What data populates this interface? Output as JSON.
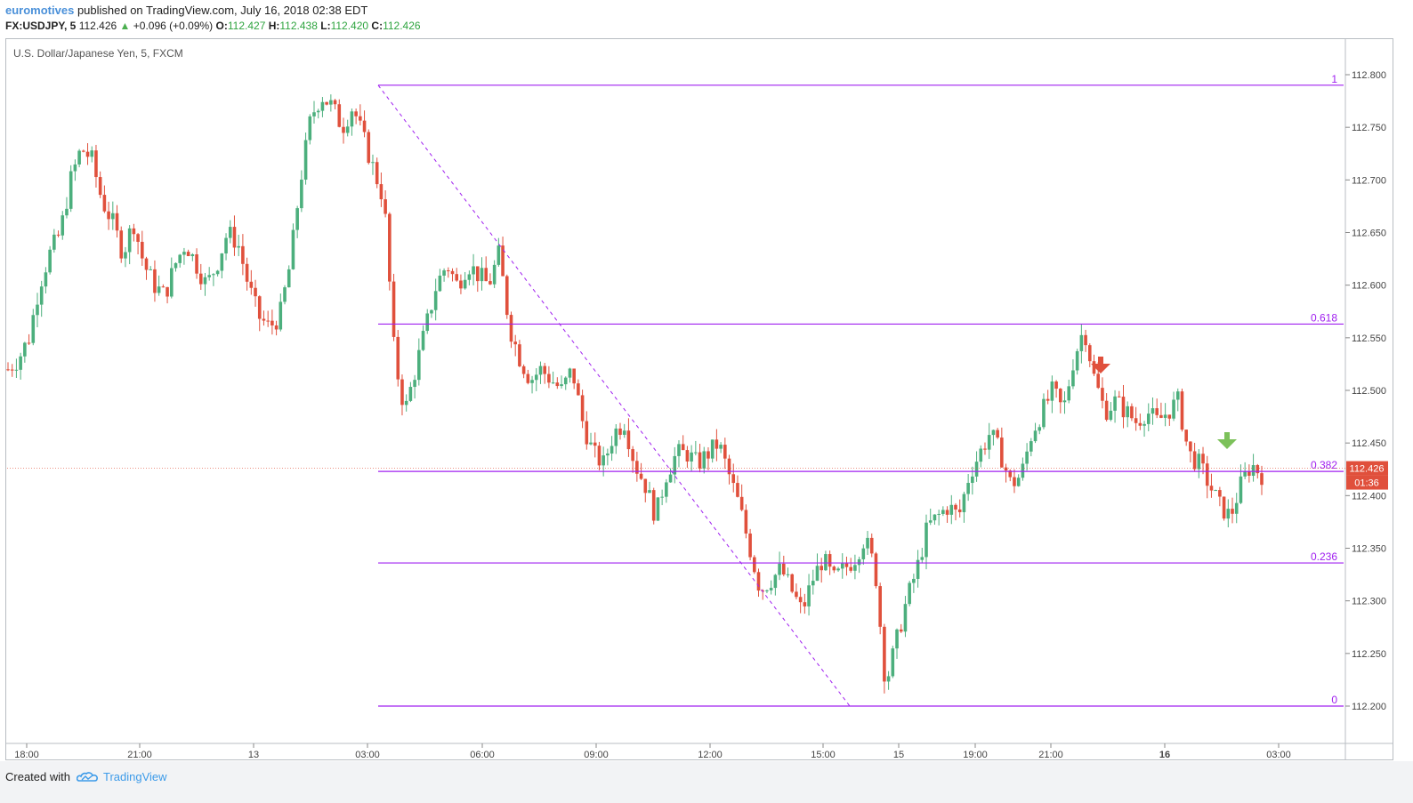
{
  "header": {
    "author": "euromotives",
    "published_text": "published on TradingView.com, July 16, 2018 02:38 EDT",
    "symbol": "FX:USDJPY, 5",
    "last": "112.426",
    "change_arrow": "▲",
    "change": "+0.096 (+0.09%)",
    "o_label": "O:",
    "o_value": "112.427",
    "h_label": "H:",
    "h_value": "112.438",
    "l_label": "L:",
    "l_value": "112.420",
    "c_label": "C:",
    "c_value": "112.426"
  },
  "chart_title": "U.S. Dollar/Japanese Yen, 5, FXCM",
  "footer": {
    "created_with": "Created with",
    "brand": "TradingView",
    "logo_icon": "tradingview-cloud-icon"
  },
  "colors": {
    "up": "#4caf7d",
    "down": "#e0503c",
    "fib": "#a020f0",
    "price_tag": "#e0503c",
    "brand": "#3d9be9"
  },
  "chart_data": {
    "type": "candlestick",
    "title": "U.S. Dollar/Japanese Yen, 5, FXCM",
    "ylim": [
      112.17,
      112.82
    ],
    "y_ticks": [
      "112.800",
      "112.750",
      "112.700",
      "112.650",
      "112.600",
      "112.550",
      "112.500",
      "112.450",
      "112.400",
      "112.350",
      "112.300",
      "112.250",
      "112.200"
    ],
    "x_ticks": [
      "18:00",
      "21:00",
      "13",
      "03:00",
      "06:00",
      "09:00",
      "12:00",
      "15:00",
      "15",
      "19:00",
      "21:00",
      "16",
      "03:00"
    ],
    "current_price": "112.426",
    "countdown": "01:36",
    "fib_levels": [
      {
        "label": "1",
        "price": 112.79
      },
      {
        "label": "0.618",
        "price": 112.563
      },
      {
        "label": "0.382",
        "price": 112.423
      },
      {
        "label": "0.236",
        "price": 112.336
      },
      {
        "label": "0",
        "price": 112.2
      }
    ],
    "fib_trendline": {
      "from_price": 112.79,
      "to_price": 112.2
    },
    "annotations": [
      {
        "type": "arrow-down",
        "color": "#e0503c"
      },
      {
        "type": "arrow-down",
        "color": "#7cc15a"
      }
    ],
    "price_path": [
      112.52,
      112.53,
      112.55,
      112.6,
      112.63,
      112.65,
      112.7,
      112.73,
      112.72,
      112.68,
      112.66,
      112.63,
      112.66,
      112.62,
      112.6,
      112.59,
      112.62,
      112.64,
      112.62,
      112.6,
      112.62,
      112.65,
      112.64,
      112.6,
      112.57,
      112.56,
      112.57,
      112.62,
      112.7,
      112.76,
      112.78,
      112.77,
      112.75,
      112.77,
      112.74,
      112.71,
      112.68,
      112.53,
      112.48,
      112.52,
      112.56,
      112.6,
      112.62,
      112.6,
      112.62,
      112.61,
      112.6,
      112.63,
      112.56,
      112.53,
      112.51,
      112.52,
      112.51,
      112.5,
      112.52,
      112.47,
      112.44,
      112.43,
      112.46,
      112.47,
      112.43,
      112.41,
      112.38,
      112.42,
      112.44,
      112.44,
      112.43,
      112.44,
      112.45,
      112.42,
      112.39,
      112.35,
      112.31,
      112.32,
      112.33,
      112.31,
      112.29,
      112.32,
      112.34,
      112.32,
      112.33,
      112.34,
      112.36,
      112.33,
      112.22,
      112.26,
      112.3,
      112.33,
      112.37,
      112.38,
      112.39,
      112.38,
      112.42,
      112.44,
      112.46,
      112.44,
      112.41,
      112.42,
      112.46,
      112.48,
      112.5,
      112.48,
      112.53,
      112.56,
      112.51,
      112.48,
      112.49,
      112.48,
      112.47,
      112.48,
      112.47,
      112.48,
      112.49,
      112.44,
      112.43,
      112.41,
      112.39,
      112.38,
      112.41,
      112.43,
      112.42
    ]
  }
}
